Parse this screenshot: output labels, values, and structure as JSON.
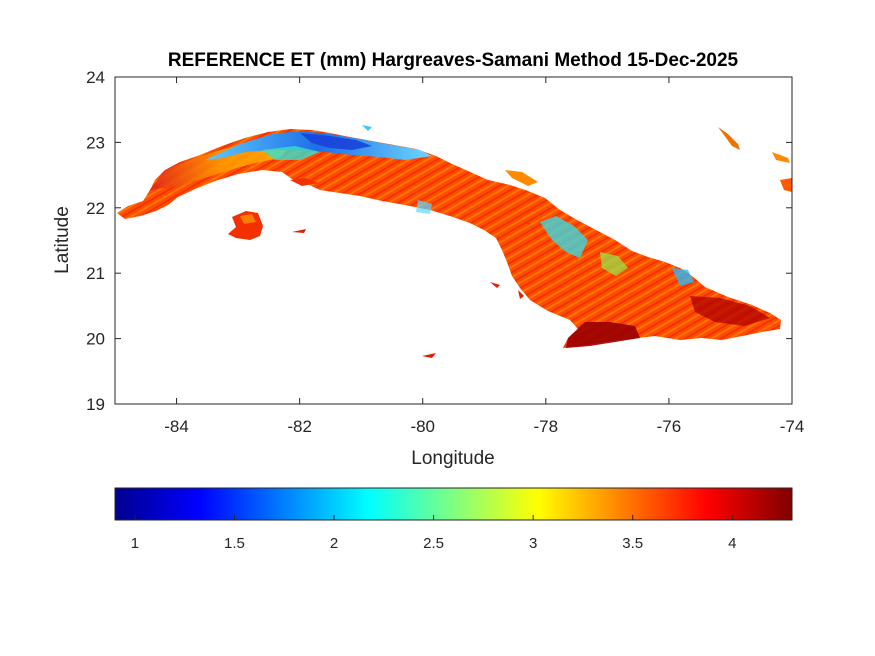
{
  "title": "REFERENCE ET (mm) Hargreaves-Samani Method  15-Dec-2025",
  "map": {
    "xlabel": "Longitude",
    "ylabel": "Latitude",
    "xlim": [
      -85,
      -74
    ],
    "ylim": [
      19,
      24
    ],
    "xticks": [
      {
        "value": -84,
        "label": "-84"
      },
      {
        "value": -82,
        "label": "-82"
      },
      {
        "value": -80,
        "label": "-80"
      },
      {
        "value": -78,
        "label": "-78"
      },
      {
        "value": -76,
        "label": "-76"
      },
      {
        "value": -74,
        "label": "-74"
      }
    ],
    "yticks": [
      {
        "value": 19,
        "label": "19"
      },
      {
        "value": 20,
        "label": "20"
      },
      {
        "value": 21,
        "label": "21"
      },
      {
        "value": 22,
        "label": "22"
      },
      {
        "value": 23,
        "label": "23"
      },
      {
        "value": 24,
        "label": "24"
      }
    ],
    "box": true,
    "grid": false
  },
  "colorbar": {
    "colormap": "jet",
    "range": [
      0.9,
      4.3
    ],
    "placement": "below",
    "ticks": [
      {
        "value": 1,
        "label": "1"
      },
      {
        "value": 1.5,
        "label": "1.5"
      },
      {
        "value": 2,
        "label": "2"
      },
      {
        "value": 2.5,
        "label": "2.5"
      },
      {
        "value": 3,
        "label": "3"
      },
      {
        "value": 3.5,
        "label": "3.5"
      },
      {
        "value": 4,
        "label": "4"
      }
    ]
  },
  "colors": {
    "background": "#ffffff",
    "axis": "#262626",
    "low": "#00008f",
    "mid": "#ffff00",
    "high": "#800000",
    "dominant": "#ff3c00"
  }
}
